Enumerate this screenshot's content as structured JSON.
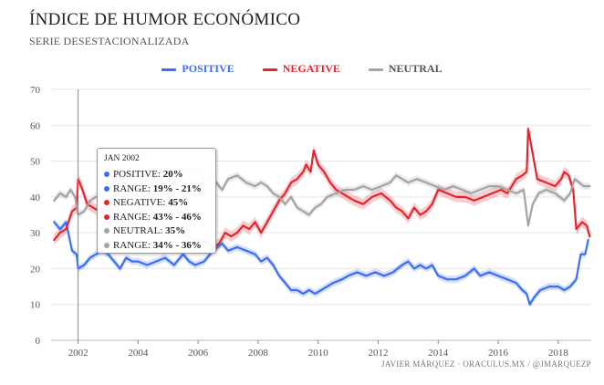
{
  "title": "ÍNDICE DE HUMOR ECONÓMICO",
  "subtitle": "SERIE DESESTACIONALIZADA",
  "credit": "JAVIER MÁRQUEZ · ORACULUS.MX / @JMARQUEZP",
  "colors": {
    "positive": "#3b6ef0",
    "negative": "#e3262e",
    "neutral": "#a3a3a3",
    "grid": "#e6e6e6",
    "axis": "#444444"
  },
  "tooltip": {
    "date": "JAN 2002",
    "rows": [
      {
        "label": "POSITIVE: ",
        "value": "20%",
        "series": "positive"
      },
      {
        "label": "RANGE: ",
        "value": "19% - 21%",
        "series": "positive"
      },
      {
        "label": "NEGATIVE: ",
        "value": "45%",
        "series": "negative"
      },
      {
        "label": "RANGE: ",
        "value": "43% - 46%",
        "series": "negative"
      },
      {
        "label": "NEUTRAL: ",
        "value": "35%",
        "series": "neutral"
      },
      {
        "label": "RANGE: ",
        "value": "34% - 36%",
        "series": "neutral"
      }
    ]
  },
  "chart_data": {
    "type": "line",
    "x_unit": "year",
    "xlim": [
      2001.1,
      2019.1
    ],
    "ylim": [
      0,
      70
    ],
    "yticks": [
      0,
      10,
      20,
      30,
      40,
      50,
      60,
      70
    ],
    "xticks": [
      2002,
      2004,
      2006,
      2008,
      2010,
      2012,
      2014,
      2016,
      2018
    ],
    "grid": true,
    "legend_position": "top-center",
    "crosshair_x": 2002.0,
    "series": [
      {
        "name": "POSITIVE",
        "key": "positive",
        "band": 1,
        "points": [
          [
            2001.2,
            33
          ],
          [
            2001.4,
            31
          ],
          [
            2001.6,
            33
          ],
          [
            2001.8,
            25
          ],
          [
            2001.95,
            24
          ],
          [
            2002.0,
            20
          ],
          [
            2002.2,
            21
          ],
          [
            2002.4,
            23
          ],
          [
            2002.6,
            24
          ],
          [
            2002.8,
            25
          ],
          [
            2003.0,
            24
          ],
          [
            2003.2,
            22
          ],
          [
            2003.4,
            20
          ],
          [
            2003.6,
            23
          ],
          [
            2003.8,
            22
          ],
          [
            2004.0,
            22
          ],
          [
            2004.3,
            21
          ],
          [
            2004.6,
            22
          ],
          [
            2004.9,
            23
          ],
          [
            2005.2,
            21
          ],
          [
            2005.5,
            24
          ],
          [
            2005.7,
            22
          ],
          [
            2005.9,
            21
          ],
          [
            2006.2,
            22
          ],
          [
            2006.5,
            25
          ],
          [
            2006.8,
            27
          ],
          [
            2007.0,
            25
          ],
          [
            2007.3,
            26
          ],
          [
            2007.6,
            25
          ],
          [
            2007.9,
            24
          ],
          [
            2008.1,
            22
          ],
          [
            2008.3,
            23
          ],
          [
            2008.5,
            21
          ],
          [
            2008.7,
            18
          ],
          [
            2008.9,
            16
          ],
          [
            2009.1,
            14
          ],
          [
            2009.3,
            14
          ],
          [
            2009.5,
            13
          ],
          [
            2009.7,
            14
          ],
          [
            2009.9,
            13
          ],
          [
            2010.1,
            14
          ],
          [
            2010.3,
            15
          ],
          [
            2010.5,
            16
          ],
          [
            2010.8,
            17
          ],
          [
            2011.0,
            18
          ],
          [
            2011.3,
            19
          ],
          [
            2011.6,
            18
          ],
          [
            2011.9,
            19
          ],
          [
            2012.2,
            18
          ],
          [
            2012.5,
            19
          ],
          [
            2012.8,
            21
          ],
          [
            2013.0,
            22
          ],
          [
            2013.2,
            20
          ],
          [
            2013.4,
            21
          ],
          [
            2013.6,
            20
          ],
          [
            2013.8,
            21
          ],
          [
            2014.0,
            18
          ],
          [
            2014.3,
            17
          ],
          [
            2014.6,
            17
          ],
          [
            2014.9,
            18
          ],
          [
            2015.2,
            20
          ],
          [
            2015.4,
            18
          ],
          [
            2015.7,
            19
          ],
          [
            2016.0,
            18
          ],
          [
            2016.3,
            17
          ],
          [
            2016.6,
            16
          ],
          [
            2016.8,
            14
          ],
          [
            2016.95,
            13
          ],
          [
            2017.05,
            10
          ],
          [
            2017.2,
            12
          ],
          [
            2017.4,
            14
          ],
          [
            2017.7,
            15
          ],
          [
            2018.0,
            15
          ],
          [
            2018.2,
            14
          ],
          [
            2018.4,
            15
          ],
          [
            2018.6,
            17
          ],
          [
            2018.75,
            24
          ],
          [
            2018.9,
            24
          ],
          [
            2019.0,
            28
          ]
        ]
      },
      {
        "name": "NEGATIVE",
        "key": "negative",
        "band": 1.5,
        "points": [
          [
            2001.2,
            28
          ],
          [
            2001.4,
            30
          ],
          [
            2001.6,
            31
          ],
          [
            2001.8,
            36
          ],
          [
            2001.95,
            37
          ],
          [
            2002.0,
            45
          ],
          [
            2002.15,
            42
          ],
          [
            2002.3,
            38
          ],
          [
            2002.5,
            37
          ],
          [
            2002.7,
            36
          ],
          [
            2002.9,
            35
          ],
          [
            2003.2,
            34
          ],
          [
            2003.5,
            33
          ],
          [
            2003.8,
            31
          ],
          [
            2004.1,
            31
          ],
          [
            2004.4,
            30
          ],
          [
            2004.7,
            31
          ],
          [
            2005.0,
            30
          ],
          [
            2005.3,
            31
          ],
          [
            2005.6,
            29
          ],
          [
            2005.9,
            28
          ],
          [
            2006.2,
            28
          ],
          [
            2006.5,
            26
          ],
          [
            2006.7,
            27
          ],
          [
            2006.9,
            30
          ],
          [
            2007.1,
            29
          ],
          [
            2007.3,
            30
          ],
          [
            2007.5,
            32
          ],
          [
            2007.7,
            31
          ],
          [
            2007.9,
            33
          ],
          [
            2008.1,
            30
          ],
          [
            2008.3,
            33
          ],
          [
            2008.5,
            36
          ],
          [
            2008.7,
            39
          ],
          [
            2008.9,
            41
          ],
          [
            2009.1,
            44
          ],
          [
            2009.3,
            45
          ],
          [
            2009.5,
            47
          ],
          [
            2009.6,
            49
          ],
          [
            2009.75,
            47
          ],
          [
            2009.85,
            53
          ],
          [
            2010.0,
            49
          ],
          [
            2010.2,
            47
          ],
          [
            2010.4,
            44
          ],
          [
            2010.6,
            42
          ],
          [
            2010.8,
            41
          ],
          [
            2011.0,
            40
          ],
          [
            2011.2,
            39
          ],
          [
            2011.5,
            38
          ],
          [
            2011.8,
            40
          ],
          [
            2012.1,
            41
          ],
          [
            2012.4,
            39
          ],
          [
            2012.6,
            37
          ],
          [
            2012.8,
            36
          ],
          [
            2013.0,
            34
          ],
          [
            2013.2,
            37
          ],
          [
            2013.4,
            35
          ],
          [
            2013.6,
            36
          ],
          [
            2013.8,
            38
          ],
          [
            2014.0,
            42
          ],
          [
            2014.3,
            41
          ],
          [
            2014.6,
            40
          ],
          [
            2014.9,
            40
          ],
          [
            2015.2,
            39
          ],
          [
            2015.5,
            40
          ],
          [
            2015.8,
            41
          ],
          [
            2016.1,
            42
          ],
          [
            2016.3,
            41
          ],
          [
            2016.6,
            45
          ],
          [
            2016.8,
            46
          ],
          [
            2016.95,
            47
          ],
          [
            2017.0,
            59
          ],
          [
            2017.15,
            52
          ],
          [
            2017.3,
            45
          ],
          [
            2017.6,
            44
          ],
          [
            2017.9,
            43
          ],
          [
            2018.1,
            45
          ],
          [
            2018.2,
            47
          ],
          [
            2018.35,
            46
          ],
          [
            2018.5,
            42
          ],
          [
            2018.6,
            31
          ],
          [
            2018.8,
            33
          ],
          [
            2018.95,
            32
          ],
          [
            2019.05,
            29
          ]
        ]
      },
      {
        "name": "NEUTRAL",
        "key": "neutral",
        "band": 1,
        "points": [
          [
            2001.2,
            39
          ],
          [
            2001.4,
            41
          ],
          [
            2001.6,
            40
          ],
          [
            2001.75,
            42
          ],
          [
            2001.9,
            40
          ],
          [
            2002.0,
            35
          ],
          [
            2002.2,
            36
          ],
          [
            2002.4,
            39
          ],
          [
            2002.6,
            40
          ],
          [
            2002.8,
            41
          ],
          [
            2003.0,
            42
          ],
          [
            2003.3,
            44
          ],
          [
            2003.6,
            46
          ],
          [
            2003.9,
            45
          ],
          [
            2004.2,
            46
          ],
          [
            2004.5,
            48
          ],
          [
            2004.8,
            47
          ],
          [
            2005.1,
            45
          ],
          [
            2005.4,
            46
          ],
          [
            2005.7,
            47
          ],
          [
            2006.0,
            48
          ],
          [
            2006.2,
            44
          ],
          [
            2006.4,
            46
          ],
          [
            2006.6,
            44
          ],
          [
            2006.8,
            42
          ],
          [
            2007.0,
            45
          ],
          [
            2007.3,
            46
          ],
          [
            2007.6,
            44
          ],
          [
            2007.9,
            43
          ],
          [
            2008.1,
            44
          ],
          [
            2008.3,
            43
          ],
          [
            2008.5,
            41
          ],
          [
            2008.7,
            40
          ],
          [
            2008.9,
            38
          ],
          [
            2009.1,
            40
          ],
          [
            2009.3,
            37
          ],
          [
            2009.5,
            36
          ],
          [
            2009.7,
            35
          ],
          [
            2009.9,
            37
          ],
          [
            2010.1,
            38
          ],
          [
            2010.3,
            40
          ],
          [
            2010.6,
            41
          ],
          [
            2010.9,
            42
          ],
          [
            2011.2,
            42
          ],
          [
            2011.5,
            43
          ],
          [
            2011.8,
            42
          ],
          [
            2012.1,
            43
          ],
          [
            2012.4,
            44
          ],
          [
            2012.6,
            46
          ],
          [
            2012.8,
            45
          ],
          [
            2013.0,
            44
          ],
          [
            2013.3,
            45
          ],
          [
            2013.6,
            44
          ],
          [
            2013.9,
            43
          ],
          [
            2014.2,
            42
          ],
          [
            2014.5,
            43
          ],
          [
            2014.8,
            42
          ],
          [
            2015.1,
            41
          ],
          [
            2015.4,
            42
          ],
          [
            2015.7,
            43
          ],
          [
            2016.0,
            43
          ],
          [
            2016.3,
            42
          ],
          [
            2016.6,
            41
          ],
          [
            2016.85,
            42
          ],
          [
            2017.0,
            32
          ],
          [
            2017.15,
            38
          ],
          [
            2017.35,
            41
          ],
          [
            2017.6,
            42
          ],
          [
            2017.9,
            41
          ],
          [
            2018.2,
            39
          ],
          [
            2018.4,
            41
          ],
          [
            2018.55,
            45
          ],
          [
            2018.7,
            44
          ],
          [
            2018.85,
            43
          ],
          [
            2019.05,
            43
          ]
        ]
      }
    ]
  }
}
